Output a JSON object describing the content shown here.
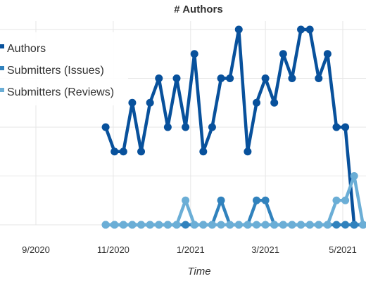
{
  "chart_data": {
    "type": "line",
    "title": "# Authors",
    "xlabel": "Time",
    "ylabel": "",
    "x_tick_labels": [
      "9/2020",
      "11/2020",
      "1/2021",
      "3/2021",
      "5/2021"
    ],
    "grid": true,
    "legend_position": "top-left",
    "x": [
      "2020-10-26",
      "2020-11-02",
      "2020-11-09",
      "2020-11-16",
      "2020-11-23",
      "2020-11-30",
      "2020-12-07",
      "2020-12-14",
      "2020-12-21",
      "2020-12-28",
      "2021-01-04",
      "2021-01-11",
      "2021-01-18",
      "2021-01-25",
      "2021-02-01",
      "2021-02-08",
      "2021-02-15",
      "2021-02-22",
      "2021-03-01",
      "2021-03-08",
      "2021-03-15",
      "2021-03-22",
      "2021-03-29",
      "2021-04-05",
      "2021-04-12",
      "2021-04-19",
      "2021-04-26",
      "2021-05-03",
      "2021-05-10",
      "2021-05-17",
      "2021-05-24"
    ],
    "series": [
      {
        "name": "Authors",
        "color": "#08519c",
        "values": [
          4,
          3,
          3,
          5,
          3,
          5,
          6,
          4,
          6,
          4,
          7,
          3,
          4,
          6,
          6,
          8,
          3,
          5,
          6,
          5,
          7,
          6,
          8,
          8,
          6,
          7,
          4,
          4,
          0,
          0,
          0
        ]
      },
      {
        "name": "Submitters (Issues)",
        "color": "#3182bd",
        "values": [
          0,
          0,
          0,
          0,
          0,
          0,
          0,
          0,
          0,
          0,
          0,
          0,
          0,
          1,
          0,
          0,
          0,
          1,
          1,
          0,
          0,
          0,
          0,
          0,
          0,
          0,
          0,
          0,
          0,
          0,
          0
        ]
      },
      {
        "name": "Submitters (Reviews)",
        "color": "#6baed6",
        "values": [
          0,
          0,
          0,
          0,
          0,
          0,
          0,
          0,
          0,
          1,
          0,
          0,
          0,
          0,
          0,
          0,
          0,
          0,
          0,
          0,
          0,
          0,
          0,
          0,
          0,
          0,
          1,
          1,
          2,
          0,
          0
        ]
      }
    ]
  }
}
